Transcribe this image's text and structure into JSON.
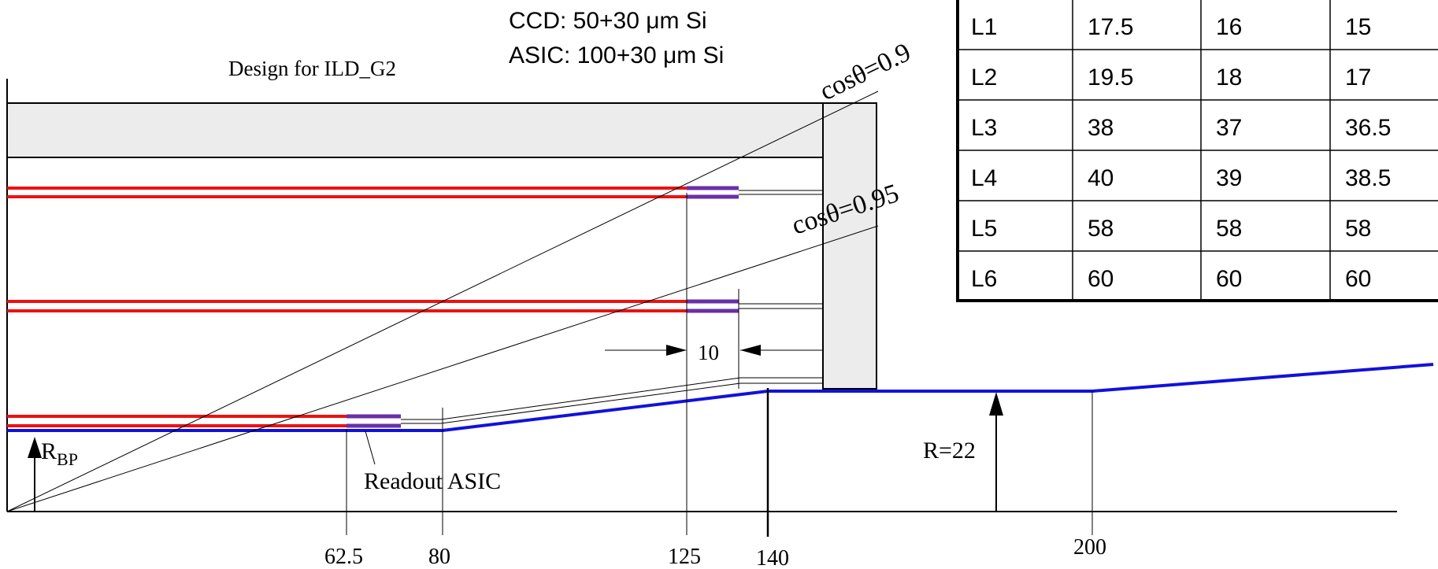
{
  "diagram": {
    "title": "Design for ILD_G2",
    "ccd_spec": "CCD: 50+30 μm Si",
    "asic_spec": "ASIC: 100+30 μm Si",
    "angle_labels": {
      "c09": "cosθ=0.9",
      "c095": "cosθ=0.95"
    },
    "gap_label": "10",
    "r_bp_main": "R",
    "r_bp_sub": "BP",
    "readout_label": "Readout ASIC",
    "r22_label": "R=22",
    "axis_ticks": {
      "t62": "62.5",
      "t80": "80",
      "t125": "125",
      "t140": "140",
      "t200": "200"
    }
  },
  "table": {
    "rows": [
      {
        "layer": "L1",
        "v1": "17.5",
        "v2": "16",
        "v3": "15"
      },
      {
        "layer": "L2",
        "v1": "19.5",
        "v2": "18",
        "v3": "17"
      },
      {
        "layer": "L3",
        "v1": "38",
        "v2": "37",
        "v3": "36.5"
      },
      {
        "layer": "L4",
        "v1": "40",
        "v2": "39",
        "v3": "38.5"
      },
      {
        "layer": "L5",
        "v1": "58",
        "v2": "58",
        "v3": "58"
      },
      {
        "layer": "L6",
        "v1": "60",
        "v2": "60",
        "v3": "60"
      }
    ]
  },
  "colors": {
    "ladder": "#ee1111",
    "asic": "#6a2fa8",
    "beampipe": "#1111dd",
    "support": "#ececec"
  }
}
